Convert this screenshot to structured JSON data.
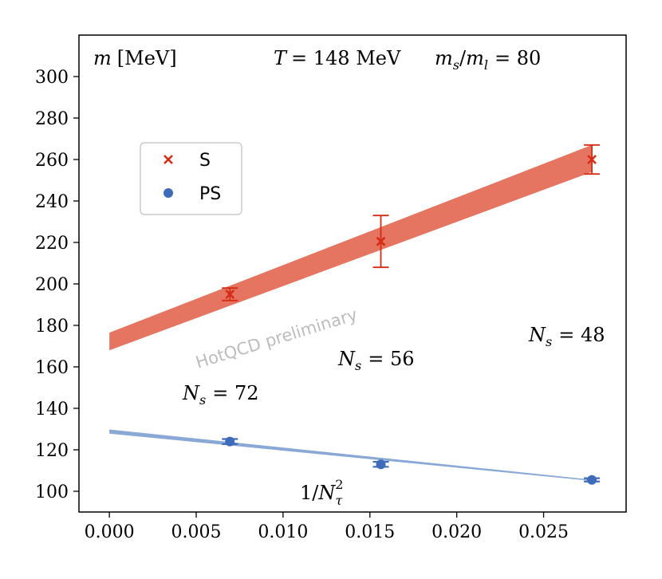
{
  "chart_data": {
    "type": "scatter",
    "title": "",
    "xlabel": "1/N_τ^2",
    "ylabel": "m [MeV]",
    "xlim": [
      -0.00175,
      0.02975
    ],
    "ylim": [
      90,
      320
    ],
    "x_ticks": [
      0.0,
      0.005,
      0.01,
      0.015,
      0.02,
      0.025
    ],
    "x_tick_labels": [
      "0.000",
      "0.005",
      "0.010",
      "0.015",
      "0.020",
      "0.025"
    ],
    "y_ticks": [
      100,
      120,
      140,
      160,
      180,
      200,
      220,
      240,
      260,
      280,
      300
    ],
    "y_tick_labels": [
      "100",
      "120",
      "140",
      "160",
      "180",
      "200",
      "220",
      "240",
      "260",
      "280",
      "300"
    ],
    "series": [
      {
        "name": "S",
        "marker": "x",
        "color": "#d62c16",
        "band_color": "#e57460",
        "x": [
          0.00694,
          0.01563,
          0.02778
        ],
        "y": [
          195,
          220.5,
          260
        ],
        "yerr": [
          3,
          12.5,
          7
        ],
        "fit_band": {
          "x0": 0.0,
          "lo0": 168,
          "hi0": 176.5,
          "x1": 0.02778,
          "lo1": 254,
          "hi1": 267
        }
      },
      {
        "name": "PS",
        "marker": "o",
        "color": "#3e6cba",
        "band_color": "#89a8d6",
        "x": [
          0.00694,
          0.01563,
          0.02778
        ],
        "y": [
          124,
          113,
          105.5
        ],
        "yerr": [
          1.2,
          1.2,
          0.8
        ],
        "fit_band": {
          "x0": 0.0,
          "lo0": 127.8,
          "hi0": 129.8,
          "x1": 0.02778,
          "lo1": 105,
          "hi1": 105.6
        }
      }
    ],
    "legend": {
      "position": "upper-left",
      "entries": [
        "S",
        "PS"
      ]
    },
    "annotations": {
      "ylabel_text": {
        "var": "m",
        "unit": "[MeV]"
      },
      "temperature": {
        "var": "T",
        "value": "= 148 MeV"
      },
      "mass_ratio": {
        "var": "m",
        "sub1": "s",
        "sep": "/",
        "var2": "m",
        "sub2": "l",
        "value": "= 80"
      },
      "ns_labels": [
        {
          "var": "N",
          "sub": "s",
          "value": "= 72"
        },
        {
          "var": "N",
          "sub": "s",
          "value": "= 56"
        },
        {
          "var": "N",
          "sub": "s",
          "value": "= 48"
        }
      ],
      "xlabel_text": {
        "num": "1/",
        "var": "N",
        "sub": "τ",
        "sup": "2"
      },
      "watermark": "HotQCD preliminary"
    }
  }
}
